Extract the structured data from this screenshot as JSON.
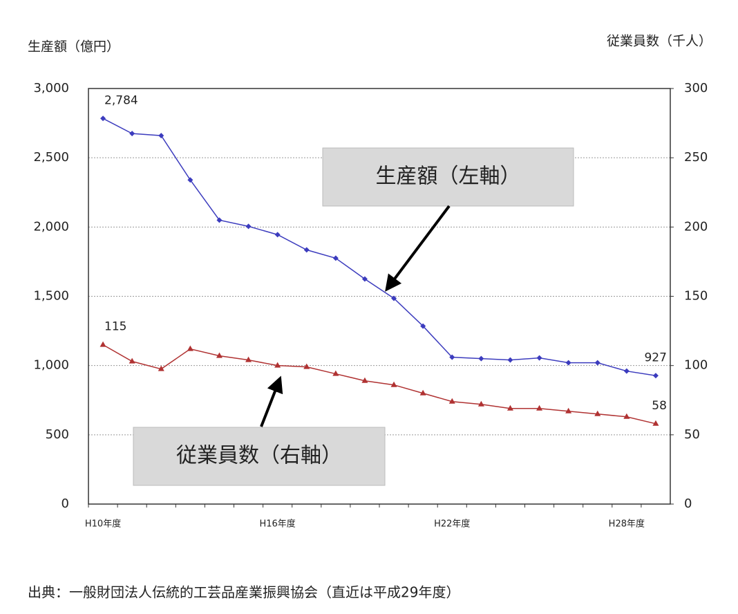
{
  "chart_data": {
    "type": "line",
    "y_label": "生産額（億円）",
    "y2_label": "従業員数（千人）",
    "source": "出典：一般財団法人伝統的工芸品産業振興協会（直近は平成29年度）",
    "categories": [
      "H10年度",
      null,
      null,
      null,
      null,
      null,
      "H16年度",
      null,
      null,
      null,
      null,
      null,
      "H22年度",
      null,
      null,
      null,
      null,
      null,
      "H28年度",
      null
    ],
    "series": [
      {
        "name": "生産額（左軸）",
        "color": "#3c3cbe",
        "values": [
          2784,
          2675,
          2660,
          2340,
          2050,
          2005,
          1945,
          1835,
          1775,
          1625,
          1485,
          1285,
          1060,
          1050,
          1040,
          1055,
          1020,
          1020,
          960,
          927
        ],
        "value_labels": [
          "2,784",
          null,
          null,
          null,
          null,
          null,
          null,
          null,
          null,
          null,
          null,
          null,
          null,
          null,
          null,
          null,
          null,
          null,
          null,
          "927"
        ]
      },
      {
        "name": "従業員数（右軸）",
        "color": "#b03232",
        "axis": "y2",
        "values": [
          115,
          103,
          97.5,
          112,
          107,
          104,
          100,
          99,
          94,
          89,
          86,
          80,
          74,
          72,
          69,
          69,
          67,
          65,
          63,
          58
        ],
        "value_labels": [
          "115",
          null,
          null,
          null,
          null,
          null,
          null,
          null,
          null,
          null,
          null,
          null,
          null,
          null,
          null,
          null,
          null,
          null,
          null,
          "58"
        ]
      }
    ],
    "ylim": [
      0,
      3000
    ],
    "yticks": [
      0,
      500,
      {
        "value": 1000,
        "label": "1,000"
      },
      {
        "value": 1500,
        "label": "1,500"
      },
      {
        "value": 2000,
        "label": "2,000"
      },
      {
        "value": 2500,
        "label": "2,500"
      },
      {
        "value": 3000,
        "label": "3,000"
      }
    ],
    "y2lim": [
      0,
      300
    ],
    "y2ticks": [
      0,
      50,
      100,
      150,
      200,
      250,
      300
    ],
    "grid": true
  }
}
